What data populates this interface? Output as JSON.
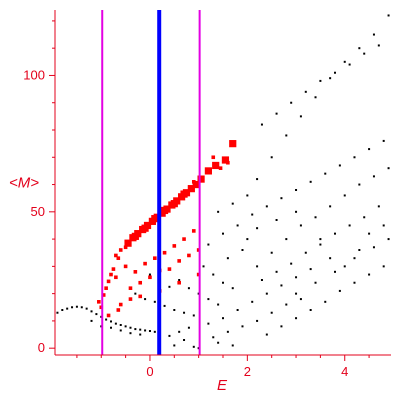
{
  "chart_data": {
    "type": "scatter",
    "title": "",
    "xlabel": "E",
    "ylabel": "<M>",
    "xlim": [
      -1.95,
      4.95
    ],
    "ylim": [
      -2.5,
      124
    ],
    "x_ticks": [
      0,
      2,
      4
    ],
    "y_ticks": [
      0,
      50,
      100
    ],
    "x_tick_labels": [
      "0",
      "2",
      "4"
    ],
    "y_tick_labels": [
      "0",
      "50",
      "100"
    ],
    "grid": false,
    "legend": "none",
    "colors": {
      "axes": "#e3001b",
      "background_points": "#000000",
      "highlight_points": "#ff0000",
      "bounds_lines": "#e300e3",
      "center_line": "#0000ff"
    },
    "vertical_lines": [
      {
        "role": "bound",
        "x": -0.98,
        "color": "#e300e3"
      },
      {
        "role": "center",
        "x": 0.19,
        "color": "#0000ff"
      },
      {
        "role": "bound",
        "x": 1.02,
        "color": "#e300e3"
      }
    ],
    "series": [
      {
        "points": [
          [
            -1.9,
            13.0
          ],
          [
            -1.8,
            14.0
          ],
          [
            -1.7,
            14.5
          ],
          [
            -1.6,
            15.0
          ],
          [
            -1.5,
            15.2
          ],
          [
            -1.4,
            15.0
          ],
          [
            -1.3,
            14.5
          ],
          [
            -1.2,
            13.5
          ],
          [
            -1.1,
            12.5
          ],
          [
            -1.0,
            11.5
          ],
          [
            -0.9,
            10.5
          ],
          [
            -0.8,
            9.8
          ],
          [
            -0.7,
            9.0
          ],
          [
            -0.6,
            8.5
          ],
          [
            -0.5,
            8.0
          ],
          [
            -0.4,
            7.5
          ],
          [
            -0.3,
            7.0
          ],
          [
            -0.2,
            6.8
          ],
          [
            -0.1,
            6.5
          ],
          [
            0.0,
            6.3
          ],
          [
            0.1,
            6.0
          ],
          [
            0.2,
            6.2
          ],
          [
            -1.2,
            10.0
          ],
          [
            -1.0,
            8.0
          ],
          [
            -0.8,
            7.5
          ],
          [
            -0.6,
            6.5
          ],
          [
            -0.4,
            5.5
          ],
          [
            -0.2,
            5.0
          ],
          [
            0.4,
            4.5
          ],
          [
            0.6,
            6.0
          ],
          [
            0.8,
            7.5
          ],
          [
            0.2,
            3.0
          ],
          [
            0.5,
            1.0
          ],
          [
            0.9,
            0.5
          ],
          [
            -0.3,
            20.0
          ],
          [
            -0.1,
            18.0
          ],
          [
            0.1,
            17.0
          ],
          [
            0.3,
            15.5
          ],
          [
            0.5,
            14.0
          ],
          [
            0.7,
            13.0
          ],
          [
            0.9,
            12.0
          ],
          [
            0.6,
            25.0
          ],
          [
            0.8,
            22.0
          ],
          [
            1.0,
            20.0
          ],
          [
            1.2,
            18.0
          ],
          [
            1.4,
            16.0
          ],
          [
            1.1,
            30.0
          ],
          [
            1.3,
            27.0
          ],
          [
            1.5,
            24.0
          ],
          [
            1.7,
            22.0
          ],
          [
            0.0,
            27.0
          ],
          [
            0.2,
            24.0
          ],
          [
            0.4,
            22.5
          ],
          [
            1.2,
            9.0
          ],
          [
            1.5,
            11.0
          ],
          [
            1.8,
            14.0
          ],
          [
            2.1,
            17.0
          ],
          [
            2.4,
            20.0
          ],
          [
            2.7,
            23.0
          ],
          [
            3.0,
            26.0
          ],
          [
            3.3,
            29.0
          ],
          [
            1.3,
            4.0
          ],
          [
            1.6,
            6.0
          ],
          [
            1.9,
            8.0
          ],
          [
            2.2,
            10.0
          ],
          [
            2.5,
            13.0
          ],
          [
            2.8,
            16.0
          ],
          [
            3.1,
            18.0
          ],
          [
            1.2,
            38.0
          ],
          [
            1.5,
            42.0
          ],
          [
            1.8,
            45.0
          ],
          [
            2.1,
            49.0
          ],
          [
            2.4,
            52.0
          ],
          [
            2.7,
            55.0
          ],
          [
            3.0,
            58.0
          ],
          [
            3.3,
            61.0
          ],
          [
            3.6,
            64.0
          ],
          [
            3.9,
            67.0
          ],
          [
            4.2,
            70.0
          ],
          [
            4.5,
            73.0
          ],
          [
            4.8,
            76.0
          ],
          [
            2.2,
            62.0
          ],
          [
            2.5,
            70.0
          ],
          [
            2.8,
            78.0
          ],
          [
            3.1,
            85.0
          ],
          [
            3.4,
            92.0
          ],
          [
            3.7,
            99.0
          ],
          [
            4.0,
            105.0
          ],
          [
            4.3,
            110.0
          ],
          [
            4.6,
            115.0
          ],
          [
            4.9,
            122.0
          ],
          [
            2.3,
            82.0
          ],
          [
            2.6,
            86.0
          ],
          [
            2.9,
            90.0
          ],
          [
            3.2,
            94.0
          ],
          [
            3.5,
            98.0
          ],
          [
            3.8,
            101.0
          ],
          [
            4.1,
            104.0
          ],
          [
            4.4,
            108.0
          ],
          [
            4.7,
            111.0
          ],
          [
            2.2,
            30.0
          ],
          [
            2.5,
            35.0
          ],
          [
            2.8,
            40.0
          ],
          [
            3.1,
            45.0
          ],
          [
            3.4,
            48.0
          ],
          [
            3.7,
            52.0
          ],
          [
            4.0,
            56.0
          ],
          [
            4.3,
            60.0
          ],
          [
            4.6,
            63.0
          ],
          [
            4.9,
            66.0
          ],
          [
            2.4,
            5.0
          ],
          [
            2.7,
            8.0
          ],
          [
            3.0,
            11.0
          ],
          [
            3.3,
            14.0
          ],
          [
            3.6,
            17.0
          ],
          [
            3.9,
            21.0
          ],
          [
            4.2,
            24.0
          ],
          [
            4.5,
            27.0
          ],
          [
            4.8,
            30.0
          ],
          [
            1.6,
            33.0
          ],
          [
            1.9,
            36.0
          ],
          [
            2.3,
            25.0
          ],
          [
            2.6,
            28.0
          ],
          [
            2.9,
            31.0
          ],
          [
            3.2,
            35.0
          ],
          [
            3.5,
            38.0
          ],
          [
            3.8,
            42.0
          ],
          [
            4.1,
            45.0
          ],
          [
            4.4,
            48.0
          ],
          [
            4.7,
            52.0
          ],
          [
            3.0,
            20.0
          ],
          [
            3.4,
            24.0
          ],
          [
            3.8,
            28.0
          ],
          [
            4.2,
            33.0
          ],
          [
            4.6,
            37.0
          ],
          [
            4.9,
            40.0
          ],
          [
            2.0,
            40.0
          ],
          [
            2.2,
            44.0
          ],
          [
            2.6,
            47.0
          ],
          [
            3.0,
            50.0
          ],
          [
            1.4,
            50.0
          ],
          [
            1.7,
            53.0
          ],
          [
            2.0,
            56.0
          ],
          [
            1.0,
            0.0
          ],
          [
            1.4,
            2.0
          ],
          [
            1.7,
            1.0
          ],
          [
            0.7,
            3.0
          ],
          [
            3.5,
            40.0
          ],
          [
            3.7,
            33.0
          ],
          [
            4.0,
            30.0
          ],
          [
            4.3,
            36.0
          ],
          [
            4.5,
            42.0
          ],
          [
            4.8,
            45.0
          ]
        ]
      },
      {
        "points": [
          [
            -0.35,
            40.5
          ],
          [
            -0.25,
            42.0
          ],
          [
            -0.15,
            43.5
          ],
          [
            -0.05,
            45.0
          ],
          [
            0.05,
            46.5
          ],
          [
            0.15,
            48.0
          ],
          [
            0.25,
            49.5
          ],
          [
            0.35,
            51.0
          ],
          [
            0.45,
            52.5
          ],
          [
            0.55,
            54.0
          ],
          [
            0.65,
            55.5
          ],
          [
            0.75,
            57.0
          ],
          [
            -0.45,
            38.5
          ],
          [
            -0.3,
            41.0
          ],
          [
            -0.1,
            44.0
          ],
          [
            0.1,
            47.5
          ],
          [
            0.3,
            50.5
          ],
          [
            0.5,
            53.0
          ],
          [
            0.7,
            56.5
          ],
          [
            0.85,
            58.5
          ],
          [
            0.95,
            60.0
          ],
          [
            1.05,
            62.0
          ],
          [
            1.2,
            65.0
          ],
          [
            1.35,
            67.0
          ],
          [
            1.55,
            69.0
          ],
          [
            1.7,
            75.0
          ],
          [
            -0.6,
            36.0
          ],
          [
            -0.7,
            34.0
          ],
          [
            -0.5,
            37.0
          ],
          [
            -0.8,
            27.0
          ],
          [
            -0.9,
            22.0
          ],
          [
            -0.95,
            19.5
          ],
          [
            -1.05,
            17.0
          ],
          [
            -0.7,
            26.0
          ],
          [
            -0.5,
            30.0
          ],
          [
            -0.3,
            28.0
          ],
          [
            -0.1,
            31.0
          ],
          [
            0.1,
            33.0
          ],
          [
            0.3,
            35.0
          ],
          [
            0.5,
            37.5
          ],
          [
            0.7,
            40.0
          ],
          [
            0.9,
            43.0
          ],
          [
            -0.4,
            22.0
          ],
          [
            -0.2,
            24.0
          ],
          [
            0.0,
            26.0
          ],
          [
            0.2,
            28.5
          ],
          [
            0.4,
            29.0
          ],
          [
            0.6,
            32.0
          ],
          [
            0.8,
            34.0
          ],
          [
            1.0,
            36.0
          ],
          [
            -0.6,
            16.0
          ],
          [
            -0.4,
            18.0
          ],
          [
            -0.2,
            19.0
          ],
          [
            0.2,
            21.0
          ],
          [
            0.6,
            24.0
          ],
          [
            1.0,
            27.0
          ],
          [
            1.3,
            70.0
          ],
          [
            1.45,
            66.0
          ],
          [
            1.6,
            68.0
          ],
          [
            0.9,
            61.0
          ],
          [
            -0.75,
            29.0
          ],
          [
            -0.65,
            33.0
          ],
          [
            -0.85,
            24.5
          ],
          [
            -1.0,
            15.0
          ],
          [
            -0.85,
            12.0
          ],
          [
            -0.65,
            14.0
          ]
        ]
      }
    ]
  }
}
